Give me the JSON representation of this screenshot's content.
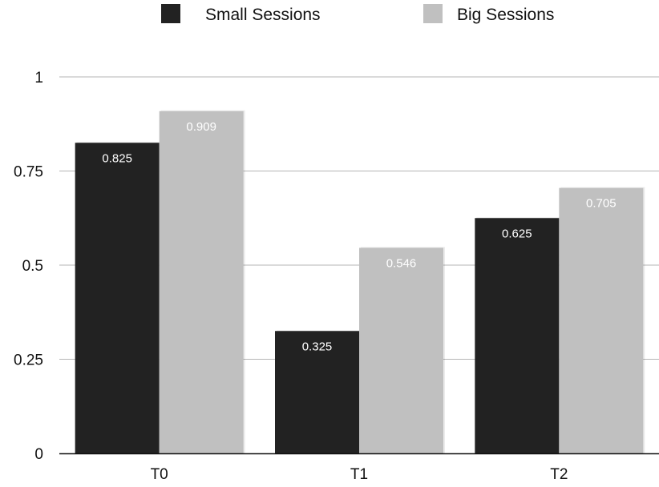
{
  "chart_data": {
    "type": "bar",
    "title": "",
    "xlabel": "",
    "ylabel": "",
    "categories": [
      "T0",
      "T1",
      "T2"
    ],
    "series": [
      {
        "name": "Small Sessions",
        "color": "#222222",
        "values": [
          0.825,
          0.325,
          0.625
        ],
        "labels": [
          "0.825",
          "0.325",
          "0.625"
        ]
      },
      {
        "name": "Big Sessions",
        "color": "#c0c0c0",
        "values": [
          0.909,
          0.546,
          0.705
        ],
        "labels": [
          "0.909",
          "0.546",
          "0.705"
        ]
      }
    ],
    "ylim": [
      0,
      1
    ],
    "yticks": [
      0,
      0.25,
      0.5,
      0.75,
      1
    ],
    "ytick_labels": [
      "0",
      "0.25",
      "0.5",
      "0.75",
      "1"
    ],
    "grid": true,
    "legend_position": "top"
  }
}
